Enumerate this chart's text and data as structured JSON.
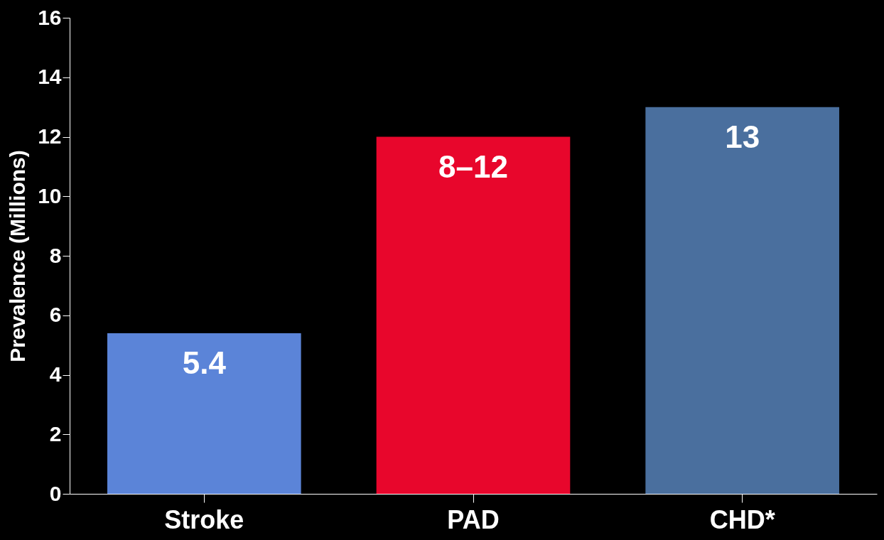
{
  "chart_data": {
    "type": "bar",
    "ylabel": "Prevalence (Millions)",
    "categories": [
      "Stroke",
      "PAD",
      "CHD*"
    ],
    "values": [
      5.4,
      12,
      13
    ],
    "value_labels": [
      "5.4",
      "8–12",
      "13"
    ],
    "colors": [
      "#5b84d8",
      "#e8062c",
      "#4a6f9e"
    ],
    "ylim": [
      0,
      16
    ],
    "yticks": [
      0,
      2,
      4,
      6,
      8,
      10,
      12,
      14,
      16
    ],
    "grid": false,
    "legend": false
  }
}
